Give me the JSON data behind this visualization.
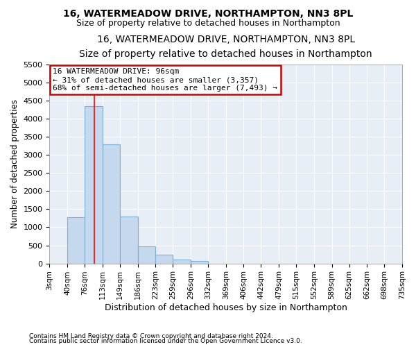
{
  "title1": "16, WATERMEADOW DRIVE, NORTHAMPTON, NN3 8PL",
  "title2": "Size of property relative to detached houses in Northampton",
  "xlabel": "Distribution of detached houses by size in Northampton",
  "ylabel": "Number of detached properties",
  "bin_edges": [
    3,
    40,
    76,
    113,
    149,
    186,
    223,
    259,
    296,
    332,
    369,
    406,
    442,
    479,
    515,
    552,
    589,
    625,
    662,
    698,
    735
  ],
  "bar_heights": [
    0,
    1270,
    4350,
    3290,
    1300,
    480,
    240,
    100,
    70,
    0,
    0,
    0,
    0,
    0,
    0,
    0,
    0,
    0,
    0,
    0
  ],
  "bar_color": "#c5d8ed",
  "bar_edgecolor": "#7ab0d4",
  "redline_x": 96,
  "annotation_text": "16 WATERMEADOW DRIVE: 96sqm\n← 31% of detached houses are smaller (3,357)\n68% of semi-detached houses are larger (7,493) →",
  "annotation_box_edgecolor": "#cc0000",
  "annotation_box_facecolor": "white",
  "ylim": [
    0,
    5500
  ],
  "yticks": [
    0,
    500,
    1000,
    1500,
    2000,
    2500,
    3000,
    3500,
    4000,
    4500,
    5000,
    5500
  ],
  "background_color": "#e8eef6",
  "grid_color": "white",
  "footnote1": "Contains HM Land Registry data © Crown copyright and database right 2024.",
  "footnote2": "Contains public sector information licensed under the Open Government Licence v3.0.",
  "title1_fontsize": 10,
  "title2_fontsize": 9,
  "xlabel_fontsize": 9,
  "ylabel_fontsize": 8.5,
  "annot_fontsize": 8,
  "tick_fontsize": 7.5,
  "ytick_fontsize": 8
}
